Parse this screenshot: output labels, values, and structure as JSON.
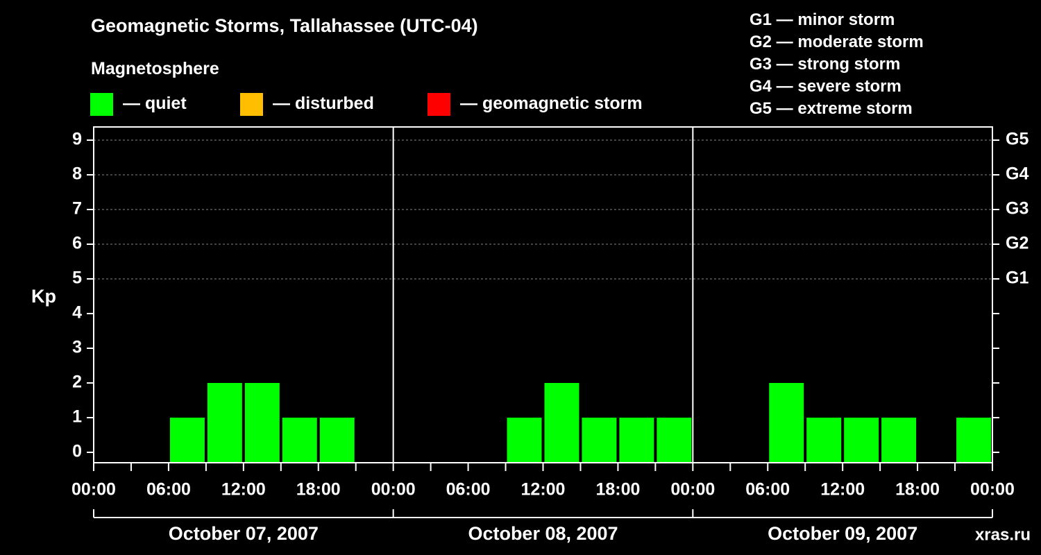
{
  "header": {
    "title": "Geomagnetic Storms, Tallahassee (UTC-04)",
    "magnetosphere": "Magnetosphere"
  },
  "legend": [
    {
      "label": "— quiet",
      "color": "#00ff00"
    },
    {
      "label": "— disturbed",
      "color": "#ffbf00"
    },
    {
      "label": "— geomagnetic storm",
      "color": "#ff0000"
    }
  ],
  "g_scale": [
    "G1 — minor storm",
    "G2 — moderate storm",
    "G3 — strong storm",
    "G4 — severe storm",
    "G5 — extreme storm"
  ],
  "watermark": "xras.ru",
  "chart_data": {
    "type": "bar",
    "ylabel": "Kp",
    "ylim": [
      0,
      9
    ],
    "y_ticks": [
      "0",
      "1",
      "2",
      "3",
      "4",
      "5",
      "6",
      "7",
      "8",
      "9"
    ],
    "right_ticks": [
      {
        "kp": 5,
        "label": "G1"
      },
      {
        "kp": 6,
        "label": "G2"
      },
      {
        "kp": 7,
        "label": "G3"
      },
      {
        "kp": 8,
        "label": "G4"
      },
      {
        "kp": 9,
        "label": "G5"
      }
    ],
    "grid": "dashed horizontal lines at Kp 5-9",
    "bar_color": "#00ff00",
    "x_tick_labels": [
      "00:00",
      "06:00",
      "12:00",
      "18:00",
      "00:00",
      "06:00",
      "12:00",
      "18:00",
      "00:00",
      "06:00",
      "12:00",
      "18:00",
      "00:00"
    ],
    "days": [
      {
        "label": "October 07, 2007",
        "kp": [
          0,
          0,
          1,
          2,
          2,
          1,
          1,
          0
        ]
      },
      {
        "label": "October 08, 2007",
        "kp": [
          0,
          0,
          0,
          1,
          2,
          1,
          1,
          1
        ]
      },
      {
        "label": "October 09, 2007",
        "kp": [
          0,
          0,
          2,
          1,
          1,
          1,
          0,
          1
        ]
      }
    ]
  }
}
